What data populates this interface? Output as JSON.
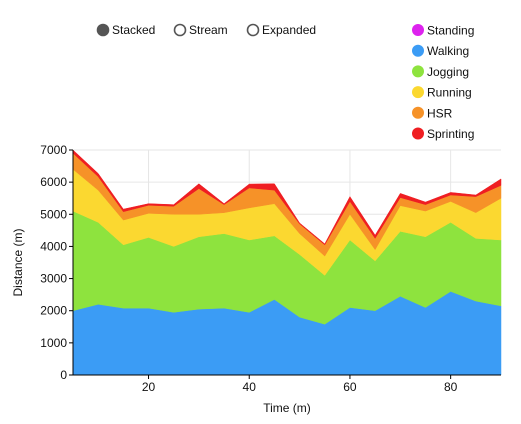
{
  "controls": {
    "modes": [
      {
        "label": "Stacked",
        "selected": true
      },
      {
        "label": "Stream",
        "selected": false
      },
      {
        "label": "Expanded",
        "selected": false
      }
    ]
  },
  "chart_data": {
    "type": "area",
    "stacked": true,
    "xlabel": "Time (m)",
    "ylabel": "Distance (m)",
    "xlim": [
      5,
      90
    ],
    "ylim": [
      0,
      7000
    ],
    "x_ticks": [
      20,
      40,
      60,
      80
    ],
    "y_ticks": [
      0,
      1000,
      2000,
      3000,
      4000,
      5000,
      6000,
      7000
    ],
    "grid": true,
    "legend_position": "top-right",
    "x": [
      5,
      10,
      15,
      20,
      25,
      30,
      35,
      40,
      45,
      50,
      55,
      60,
      65,
      70,
      75,
      80,
      85,
      90
    ],
    "series": [
      {
        "name": "Standing",
        "color": "#dd22ee",
        "values": [
          0,
          0,
          0,
          0,
          0,
          0,
          0,
          0,
          0,
          0,
          0,
          0,
          0,
          0,
          0,
          0,
          0,
          0
        ]
      },
      {
        "name": "Walking",
        "color": "#3b9cf5",
        "values": [
          2000,
          2200,
          2080,
          2080,
          1950,
          2050,
          2080,
          1950,
          2350,
          1800,
          1580,
          2100,
          2000,
          2450,
          2100,
          2600,
          2300,
          2150
        ]
      },
      {
        "name": "Jogging",
        "color": "#8ee33e",
        "values": [
          3100,
          2550,
          1970,
          2200,
          2050,
          2250,
          2320,
          2250,
          1980,
          1950,
          1520,
          2100,
          1550,
          2020,
          2200,
          2150,
          1950,
          2050
        ]
      },
      {
        "name": "Running",
        "color": "#fbd830",
        "values": [
          1300,
          1000,
          770,
          750,
          1000,
          700,
          650,
          1000,
          1000,
          650,
          600,
          800,
          350,
          800,
          800,
          650,
          800,
          1300
        ]
      },
      {
        "name": "HSR",
        "color": "#f69228",
        "values": [
          500,
          420,
          260,
          250,
          250,
          800,
          250,
          620,
          420,
          300,
          350,
          400,
          350,
          250,
          200,
          200,
          500,
          400
        ]
      },
      {
        "name": "Sprinting",
        "color": "#ef1e22",
        "values": [
          100,
          100,
          80,
          50,
          50,
          150,
          30,
          120,
          200,
          30,
          30,
          150,
          100,
          130,
          80,
          80,
          50,
          200
        ]
      }
    ]
  }
}
